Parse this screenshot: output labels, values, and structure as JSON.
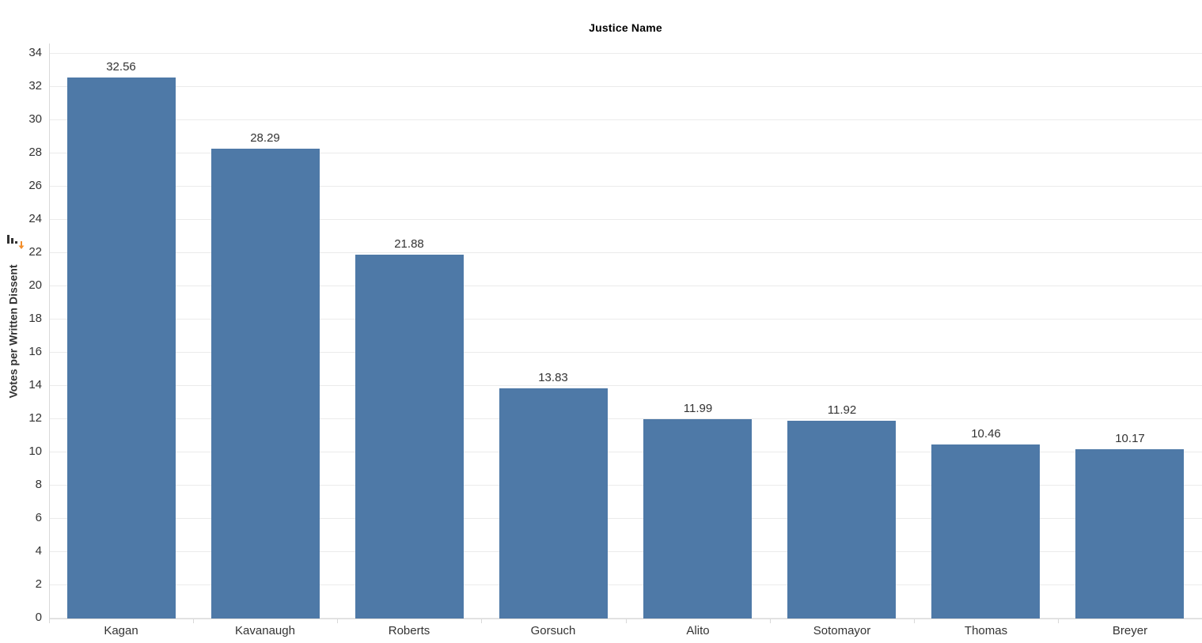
{
  "window": {
    "background": "#ffffff"
  },
  "header": {
    "title": "Justice Name"
  },
  "y_axis": {
    "label": "Votes per Written Dissent",
    "sort_icon": "sort-descending-icon",
    "tick_step": 2
  },
  "chart_data": {
    "type": "bar",
    "title": "Justice Name",
    "categories": [
      "Kagan",
      "Kavanaugh",
      "Roberts",
      "Gorsuch",
      "Alito",
      "Sotomayor",
      "Thomas",
      "Breyer"
    ],
    "values": [
      32.56,
      28.29,
      21.88,
      13.83,
      11.99,
      11.92,
      10.46,
      10.17
    ],
    "data_labels": [
      "32.56",
      "28.29",
      "21.88",
      "13.83",
      "11.99",
      "11.92",
      "10.46",
      "10.17"
    ],
    "xlabel": "",
    "ylabel": "Votes per Written Dissent",
    "ylim": [
      0,
      34.6
    ],
    "yticks": [
      0,
      2,
      4,
      6,
      8,
      10,
      12,
      14,
      16,
      18,
      20,
      22,
      24,
      26,
      28,
      30,
      32,
      34
    ],
    "grid": true,
    "legend": false,
    "sort_order": "descending"
  },
  "colors": {
    "bar": "#4e79a7",
    "grid": "#ebebeb",
    "axis": "#d9d9d9",
    "tick_text": "#333333",
    "label_text": "#333333",
    "title_text": "#000000",
    "sort_icon": "#333333",
    "sort_arrow": "#f28e2b"
  }
}
